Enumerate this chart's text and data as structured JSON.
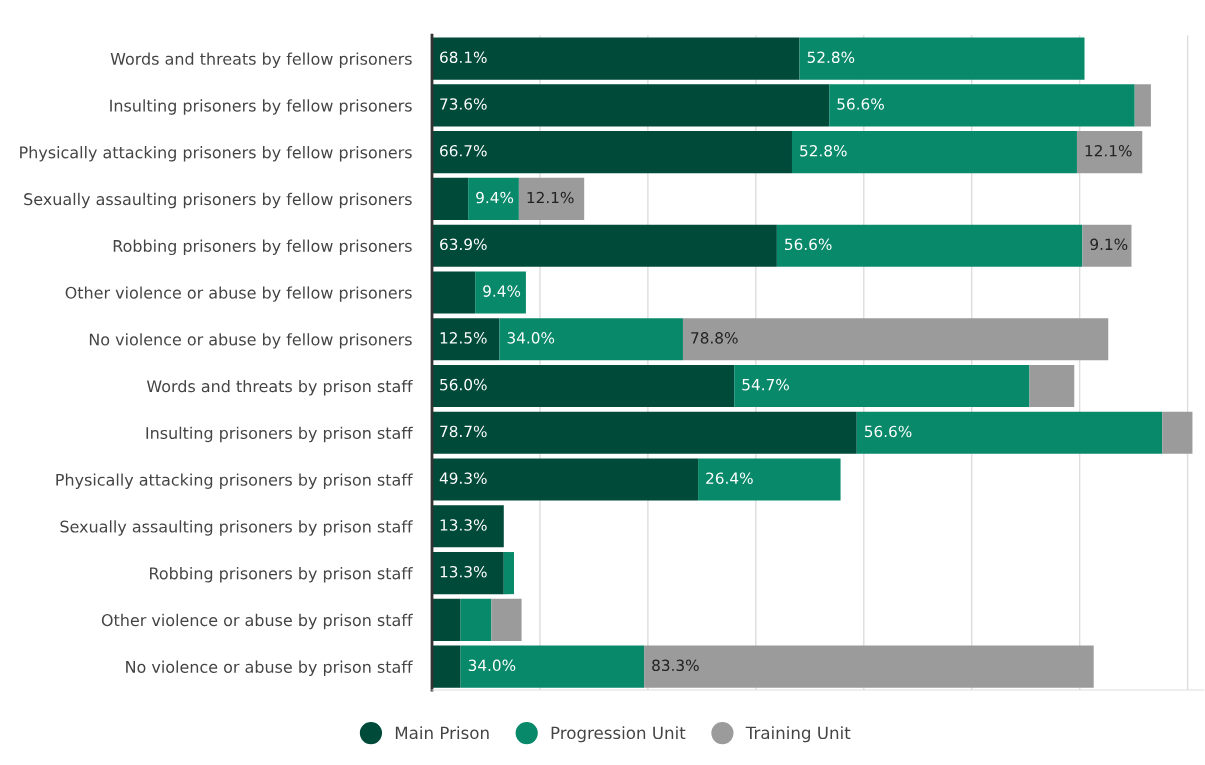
{
  "chart_data": {
    "type": "bar",
    "orientation": "horizontal",
    "stacked": true,
    "categories": [
      "Words and threats by fellow prisoners",
      "Insulting prisoners by fellow prisoners",
      "Physically attacking prisoners by fellow prisoners",
      "Sexually assaulting prisoners by fellow prisoners",
      "Robbing prisoners by fellow prisoners",
      "Other violence or abuse by fellow prisoners",
      "No violence or abuse by fellow prisoners",
      "Words and threats by prison staff",
      "Insulting prisoners by prison staff",
      "Physically attacking prisoners by prison staff",
      "Sexually assaulting prisoners by prison staff",
      "Robbing prisoners by prison staff",
      "Other violence or abuse by prison staff",
      "No violence or abuse by prison staff"
    ],
    "series": [
      {
        "name": "Main Prison",
        "color": "#004a3a",
        "values": [
          68.1,
          73.6,
          66.7,
          6.7,
          63.9,
          8.0,
          12.5,
          56.0,
          78.7,
          49.3,
          13.3,
          13.3,
          5.3,
          5.3
        ],
        "value_labels": [
          "68.1%",
          "73.6%",
          "66.7%",
          null,
          "63.9%",
          null,
          "12.5%",
          "56.0%",
          "78.7%",
          "49.3%",
          "13.3%",
          "13.3%",
          null,
          null
        ]
      },
      {
        "name": "Progression Unit",
        "color": "#08896a",
        "values": [
          52.8,
          56.6,
          52.8,
          9.4,
          56.6,
          9.4,
          34.0,
          54.7,
          56.6,
          26.4,
          0,
          1.9,
          5.7,
          34.0
        ],
        "value_labels": [
          "52.8%",
          "56.6%",
          "52.8%",
          "9.4%",
          "56.6%",
          "9.4%",
          "34.0%",
          "54.7%",
          "56.6%",
          "26.4%",
          null,
          null,
          null,
          "34.0%"
        ]
      },
      {
        "name": "Training Unit",
        "color": "#9b9b9b",
        "values": [
          0,
          3.0,
          12.1,
          12.1,
          9.1,
          0,
          78.8,
          8.3,
          5.6,
          0,
          0,
          0,
          5.6,
          83.3
        ],
        "value_labels": [
          null,
          null,
          "12.1%",
          "12.1%",
          "9.1%",
          null,
          "78.8%",
          null,
          null,
          null,
          null,
          null,
          null,
          "83.3%"
        ]
      }
    ],
    "xlim": [
      0,
      143
    ],
    "xticks": [
      {
        "value": 0,
        "label": null
      },
      {
        "value": 20,
        "label": null
      },
      {
        "value": 40,
        "label": null
      },
      {
        "value": 60,
        "label": null
      },
      {
        "value": 80,
        "label": null
      },
      {
        "value": 100,
        "label": null
      },
      {
        "value": 120,
        "label": null
      },
      {
        "value": 140,
        "label": null
      }
    ],
    "tick_labels": "y",
    "grid": "x",
    "legend": "bottom"
  }
}
